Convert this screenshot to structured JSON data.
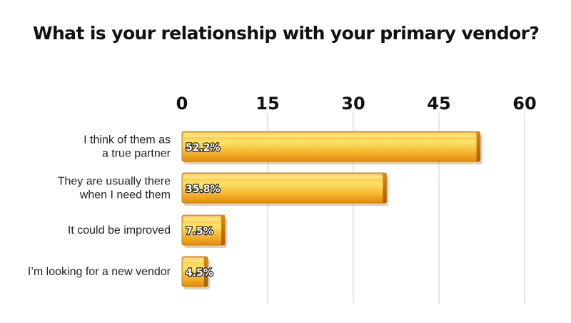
{
  "chart_data": {
    "type": "bar",
    "orientation": "horizontal",
    "title": "What is your relationship with your primary vendor?",
    "xlabel": "",
    "ylabel": "",
    "xlim": [
      0,
      60
    ],
    "ticks": [
      "0",
      "15",
      "30",
      "45",
      "60"
    ],
    "tick_values": [
      0,
      15,
      30,
      45,
      60
    ],
    "grid": true,
    "categories": [
      [
        "I think of them as",
        "a true partner"
      ],
      [
        "They are usually there",
        "when I need them"
      ],
      [
        "It could be improved"
      ],
      [
        "I’m looking for a new vendor"
      ]
    ],
    "values": [
      52.2,
      35.8,
      7.5,
      4.5
    ],
    "value_labels": [
      "52.2%",
      "35.8%",
      "7.5%",
      "4.5%"
    ],
    "bar_color": "#f5a623",
    "bar_highlight": "#fde26a"
  }
}
